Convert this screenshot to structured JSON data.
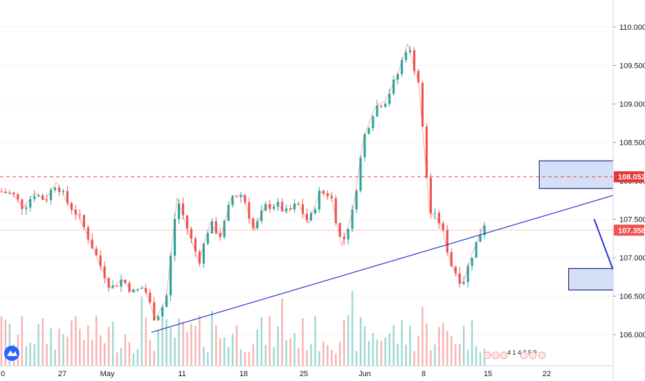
{
  "chart_data": {
    "type": "candlestick",
    "y_axis": {
      "ticks": [
        "110.000",
        "109.500",
        "109.000",
        "108.500",
        "108.000",
        "107.500",
        "107.000",
        "106.500",
        "106.000"
      ],
      "tick_values": [
        110.0,
        109.5,
        109.0,
        108.5,
        108.0,
        107.5,
        107.0,
        106.5,
        106.0
      ],
      "range": [
        105.58,
        110.34
      ]
    },
    "x_axis": {
      "labels": [
        "0",
        "27",
        "May",
        "11",
        "18",
        "25",
        "Jun",
        "8",
        "15",
        "22"
      ]
    },
    "price_lines": [
      {
        "name": "resistance-level",
        "value": 108.052,
        "label": "108.052",
        "color": "#e53935",
        "style": "dashed"
      },
      {
        "name": "last-price",
        "value": 107.358,
        "label": "107.358",
        "color": "#ef5350",
        "style": "dotted"
      }
    ],
    "zones": [
      {
        "name": "upper-zone",
        "price_top": 108.26,
        "price_bottom": 107.9,
        "day_start": 29.4,
        "day_end": 36.5
      },
      {
        "name": "lower-zone",
        "price_top": 106.86,
        "price_bottom": 106.58,
        "day_start": 31.0,
        "day_end": 34.9
      }
    ],
    "trend_line": {
      "from": {
        "day": 8.2,
        "price": 106.03
      },
      "to": {
        "day": 36.7,
        "price": 108.04
      }
    },
    "projection": [
      {
        "day": 32.4,
        "price": 107.5
      },
      {
        "day": 33.4,
        "price": 106.86
      },
      {
        "day": 35.4,
        "price": 108.04
      }
    ],
    "events": {
      "text": "4 1 4 3 5 9"
    },
    "colors": {
      "up": "#26a69a",
      "down": "#ef5350",
      "drawing": "#2733c8",
      "zone_fill": "#c7d6f5",
      "zone_stroke": "#1c2a7a",
      "axis_line": "#d1d4dc",
      "grid": "#f0f3fa"
    },
    "close_series": [
      {
        "day": 0.0,
        "close": 107.86
      },
      {
        "day": 0.6,
        "close": 107.83
      },
      {
        "day": 1.2,
        "close": 107.65
      },
      {
        "day": 1.8,
        "close": 107.84
      },
      {
        "day": 2.4,
        "close": 107.75
      },
      {
        "day": 3.0,
        "close": 107.98
      },
      {
        "day": 3.6,
        "close": 107.72
      },
      {
        "day": 4.2,
        "close": 107.55
      },
      {
        "day": 4.8,
        "close": 107.24
      },
      {
        "day": 5.4,
        "close": 106.9
      },
      {
        "day": 6.0,
        "close": 106.6
      },
      {
        "day": 6.6,
        "close": 106.72
      },
      {
        "day": 7.2,
        "close": 106.55
      },
      {
        "day": 7.8,
        "close": 106.62
      },
      {
        "day": 8.4,
        "close": 106.2
      },
      {
        "day": 9.0,
        "close": 106.45
      },
      {
        "day": 9.6,
        "close": 107.78
      },
      {
        "day": 10.2,
        "close": 107.35
      },
      {
        "day": 10.8,
        "close": 106.95
      },
      {
        "day": 11.4,
        "close": 107.45
      },
      {
        "day": 12.0,
        "close": 107.28
      },
      {
        "day": 12.6,
        "close": 107.8
      },
      {
        "day": 13.2,
        "close": 107.82
      },
      {
        "day": 13.8,
        "close": 107.35
      },
      {
        "day": 14.4,
        "close": 107.66
      },
      {
        "day": 15.0,
        "close": 107.7
      },
      {
        "day": 15.6,
        "close": 107.58
      },
      {
        "day": 16.2,
        "close": 107.7
      },
      {
        "day": 16.8,
        "close": 107.45
      },
      {
        "day": 17.4,
        "close": 107.85
      },
      {
        "day": 18.0,
        "close": 107.82
      },
      {
        "day": 18.6,
        "close": 107.15
      },
      {
        "day": 19.2,
        "close": 107.6
      },
      {
        "day": 19.8,
        "close": 108.56
      },
      {
        "day": 20.4,
        "close": 108.95
      },
      {
        "day": 21.0,
        "close": 109.05
      },
      {
        "day": 21.6,
        "close": 109.35
      },
      {
        "day": 22.2,
        "close": 109.78
      },
      {
        "day": 22.8,
        "close": 109.28
      },
      {
        "day": 23.4,
        "close": 107.6
      },
      {
        "day": 24.0,
        "close": 107.45
      },
      {
        "day": 24.6,
        "close": 106.9
      },
      {
        "day": 25.2,
        "close": 106.66
      },
      {
        "day": 25.8,
        "close": 107.1
      },
      {
        "day": 26.4,
        "close": 107.45
      }
    ]
  }
}
